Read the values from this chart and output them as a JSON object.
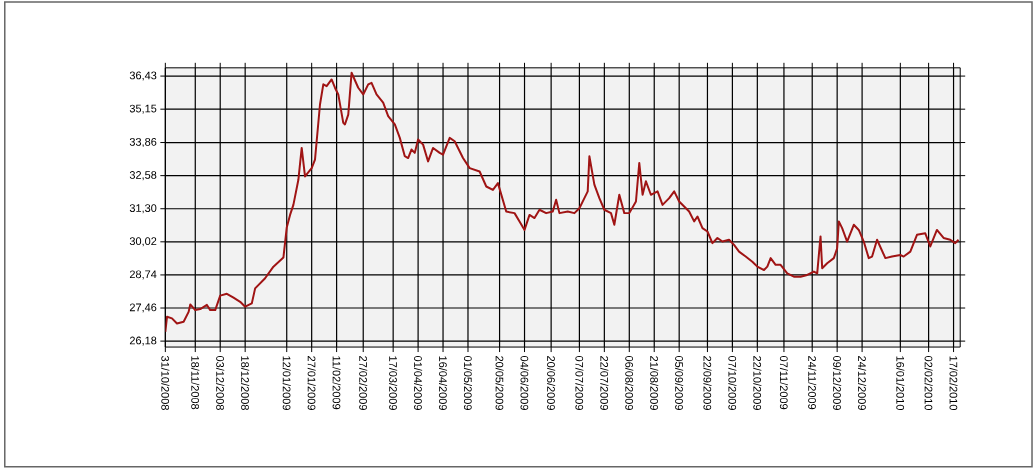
{
  "chart_data": {
    "type": "line",
    "xlim": [
      "2008-10-31",
      "2010-02-21"
    ],
    "xticks": [
      {
        "value": "2008-10-31",
        "label": "31/10/2008"
      },
      {
        "value": "2008-11-18",
        "label": "18/11/2008"
      },
      {
        "value": "2008-12-03",
        "label": "03/12/2008"
      },
      {
        "value": "2008-12-18",
        "label": "18/12/2008"
      },
      {
        "value": "2009-01-12",
        "label": "12/01/2009"
      },
      {
        "value": "2009-01-27",
        "label": "27/01/2009"
      },
      {
        "value": "2009-02-11",
        "label": "11/02/2009"
      },
      {
        "value": "2009-02-27",
        "label": "27/02/2009"
      },
      {
        "value": "2009-03-17",
        "label": "17/03/2009"
      },
      {
        "value": "2009-04-01",
        "label": "01/04/2009"
      },
      {
        "value": "2009-04-16",
        "label": "16/04/2009"
      },
      {
        "value": "2009-05-01",
        "label": "01/05/2009"
      },
      {
        "value": "2009-05-20",
        "label": "20/05/2009"
      },
      {
        "value": "2009-06-04",
        "label": "04/06/2009"
      },
      {
        "value": "2009-06-20",
        "label": "20/06/2009"
      },
      {
        "value": "2009-07-07",
        "label": "07/07/2009"
      },
      {
        "value": "2009-07-22",
        "label": "22/07/2009"
      },
      {
        "value": "2009-08-06",
        "label": "06/08/2009"
      },
      {
        "value": "2009-08-21",
        "label": "21/08/2009"
      },
      {
        "value": "2009-09-05",
        "label": "05/09/2009"
      },
      {
        "value": "2009-09-22",
        "label": "22/09/2009"
      },
      {
        "value": "2009-10-07",
        "label": "07/10/2009"
      },
      {
        "value": "2009-10-22",
        "label": "22/10/2009"
      },
      {
        "value": "2009-11-07",
        "label": "07/11/2009"
      },
      {
        "value": "2009-11-24",
        "label": "24/11/2009"
      },
      {
        "value": "2009-12-09",
        "label": "09/12/2009"
      },
      {
        "value": "2009-12-24",
        "label": "24/12/2009"
      },
      {
        "value": "2010-01-16",
        "label": "16/01/2010"
      },
      {
        "value": "2010-02-02",
        "label": "02/02/2010"
      },
      {
        "value": "2010-02-17",
        "label": "17/02/2010"
      }
    ],
    "ylim": [
      25.95,
      36.75
    ],
    "yticks": [
      {
        "value": 26.18,
        "label": "26,18"
      },
      {
        "value": 27.46,
        "label": "27,46"
      },
      {
        "value": 28.74,
        "label": "28,74"
      },
      {
        "value": 30.02,
        "label": "30,02"
      },
      {
        "value": 31.3,
        "label": "31,30"
      },
      {
        "value": 32.58,
        "label": "32,58"
      },
      {
        "value": 33.86,
        "label": "33,86"
      },
      {
        "value": 35.15,
        "label": "35,15"
      },
      {
        "value": 36.43,
        "label": "36,43"
      }
    ],
    "grid": true,
    "series": [
      {
        "color": "#a01414",
        "x": [
          "2008-10-31",
          "2008-11-01",
          "2008-11-04",
          "2008-11-07",
          "2008-11-11",
          "2008-11-14",
          "2008-11-15",
          "2008-11-18",
          "2008-11-21",
          "2008-11-25",
          "2008-11-27",
          "2008-11-30",
          "2008-12-03",
          "2008-12-07",
          "2008-12-11",
          "2008-12-15",
          "2008-12-18",
          "2008-12-22",
          "2008-12-24",
          "2008-12-30",
          "2009-01-04",
          "2009-01-10",
          "2009-01-12",
          "2009-01-14",
          "2009-01-16",
          "2009-01-19",
          "2009-01-21",
          "2009-01-23",
          "2009-01-27",
          "2009-01-29",
          "2009-02-01",
          "2009-02-03",
          "2009-02-05",
          "2009-02-08",
          "2009-02-10",
          "2009-02-12",
          "2009-02-15",
          "2009-02-16",
          "2009-02-18",
          "2009-02-20",
          "2009-02-24",
          "2009-02-27",
          "2009-03-02",
          "2009-03-04",
          "2009-03-07",
          "2009-03-11",
          "2009-03-14",
          "2009-03-18",
          "2009-03-21",
          "2009-03-24",
          "2009-03-26",
          "2009-03-28",
          "2009-03-30",
          "2009-04-01",
          "2009-04-04",
          "2009-04-07",
          "2009-04-10",
          "2009-04-14",
          "2009-04-16",
          "2009-04-20",
          "2009-04-23",
          "2009-04-28",
          "2009-05-02",
          "2009-05-08",
          "2009-05-12",
          "2009-05-16",
          "2009-05-19",
          "2009-05-24",
          "2009-05-29",
          "2009-06-01",
          "2009-06-04",
          "2009-06-07",
          "2009-06-10",
          "2009-06-13",
          "2009-06-17",
          "2009-06-21",
          "2009-06-23",
          "2009-06-25",
          "2009-06-30",
          "2009-07-04",
          "2009-07-07",
          "2009-07-10",
          "2009-07-12",
          "2009-07-13",
          "2009-07-16",
          "2009-07-19",
          "2009-07-22",
          "2009-07-26",
          "2009-07-28",
          "2009-07-31",
          "2009-08-03",
          "2009-08-06",
          "2009-08-10",
          "2009-08-12",
          "2009-08-14",
          "2009-08-16",
          "2009-08-19",
          "2009-08-23",
          "2009-08-26",
          "2009-08-30",
          "2009-09-02",
          "2009-09-05",
          "2009-09-11",
          "2009-09-14",
          "2009-09-16",
          "2009-09-19",
          "2009-09-22",
          "2009-09-25",
          "2009-09-28",
          "2009-10-01",
          "2009-10-05",
          "2009-10-08",
          "2009-10-11",
          "2009-10-15",
          "2009-10-19",
          "2009-10-22",
          "2009-10-26",
          "2009-10-28",
          "2009-10-30",
          "2009-11-02",
          "2009-11-05",
          "2009-11-09",
          "2009-11-13",
          "2009-11-17",
          "2009-11-21",
          "2009-11-25",
          "2009-11-27",
          "2009-11-29",
          "2009-11-30",
          "2009-12-03",
          "2009-12-07",
          "2009-12-09",
          "2009-12-10",
          "2009-12-12",
          "2009-12-15",
          "2009-12-19",
          "2009-12-22",
          "2009-12-25",
          "2009-12-28",
          "2009-12-30",
          "2010-01-02",
          "2010-01-07",
          "2010-01-11",
          "2010-01-16",
          "2010-01-18",
          "2010-01-22",
          "2010-01-26",
          "2010-01-31",
          "2010-02-03",
          "2010-02-07",
          "2010-02-11",
          "2010-02-15",
          "2010-02-18",
          "2010-02-20"
        ],
        "values": [
          26.54,
          27.12,
          27.06,
          26.86,
          26.93,
          27.31,
          27.6,
          27.38,
          27.42,
          27.58,
          27.38,
          27.38,
          27.94,
          28.01,
          27.86,
          27.7,
          27.51,
          27.64,
          28.22,
          28.61,
          29.06,
          29.41,
          30.57,
          31.06,
          31.45,
          32.42,
          33.65,
          32.55,
          32.87,
          33.2,
          35.33,
          36.11,
          36.04,
          36.3,
          35.98,
          35.72,
          34.62,
          34.56,
          34.94,
          36.56,
          35.98,
          35.72,
          36.11,
          36.17,
          35.72,
          35.4,
          34.88,
          34.56,
          34.04,
          33.33,
          33.26,
          33.59,
          33.46,
          33.98,
          33.78,
          33.13,
          33.65,
          33.46,
          33.39,
          34.04,
          33.91,
          33.26,
          32.87,
          32.74,
          32.16,
          32.03,
          32.29,
          31.19,
          31.13,
          30.81,
          30.48,
          31.06,
          30.94,
          31.26,
          31.13,
          31.19,
          31.65,
          31.13,
          31.19,
          31.13,
          31.32,
          31.71,
          31.97,
          33.33,
          32.23,
          31.71,
          31.26,
          31.13,
          30.68,
          31.84,
          31.13,
          31.13,
          31.58,
          33.07,
          31.84,
          32.36,
          31.84,
          31.97,
          31.45,
          31.71,
          31.97,
          31.58,
          31.19,
          30.81,
          31.0,
          30.55,
          30.42,
          29.97,
          30.17,
          30.03,
          30.1,
          29.9,
          29.64,
          29.45,
          29.25,
          29.06,
          28.93,
          29.06,
          29.39,
          29.13,
          29.13,
          28.8,
          28.67,
          28.67,
          28.74,
          28.87,
          28.8,
          30.23,
          29.0,
          29.19,
          29.39,
          29.77,
          30.81,
          30.55,
          30.03,
          30.68,
          30.48,
          30.03,
          29.39,
          29.45,
          30.1,
          29.39,
          29.45,
          29.51,
          29.45,
          29.64,
          30.29,
          30.35,
          29.84,
          30.48,
          30.17,
          30.1,
          29.97,
          30.1
        ]
      }
    ]
  }
}
